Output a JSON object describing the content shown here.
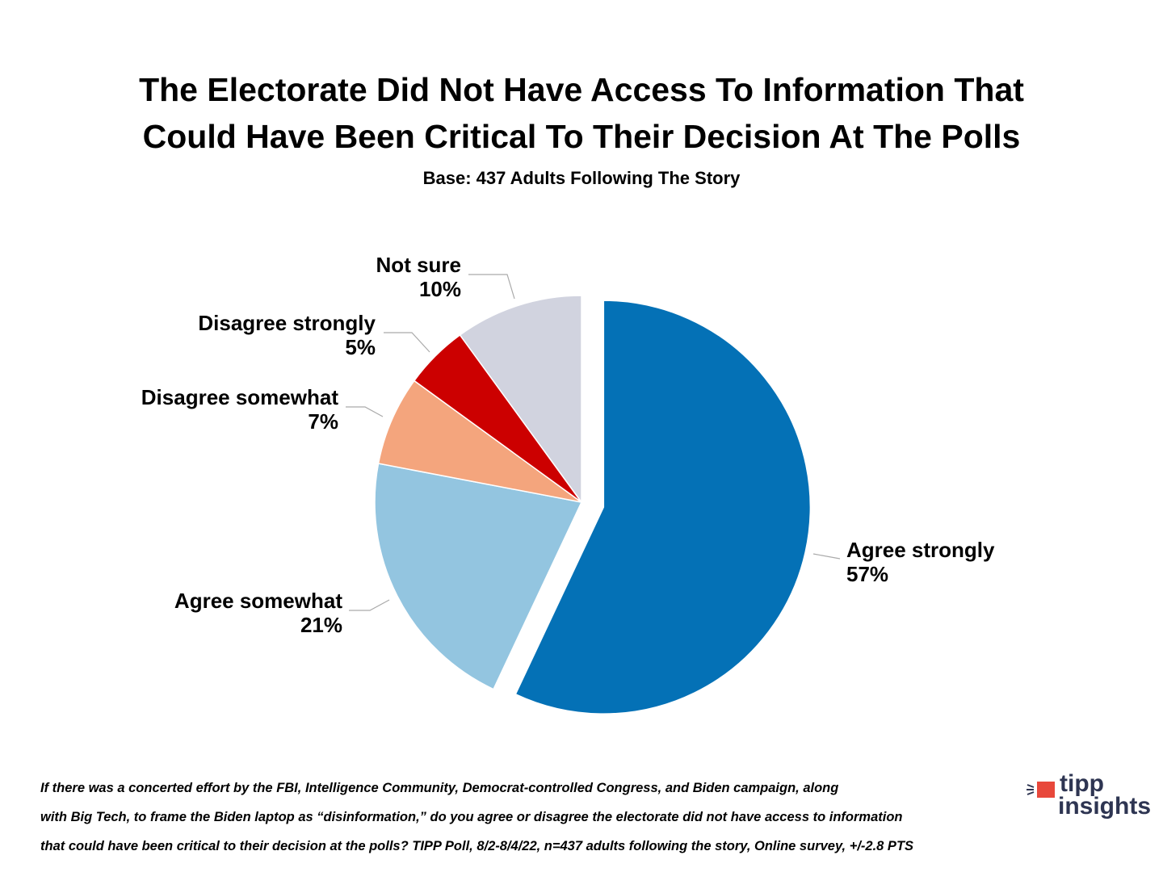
{
  "chart_data": {
    "type": "pie",
    "title": [
      "The Electorate Did Not Have Access To Information That",
      "Could Have Been Critical To Their Decision At The Polls"
    ],
    "subtitle": "Base: 437 Adults Following The Story",
    "slices": [
      {
        "name": "Agree strongly",
        "value": 57,
        "label": "57%",
        "color": "#0471b6",
        "exploded": true
      },
      {
        "name": "Agree somewhat",
        "value": 21,
        "label": "21%",
        "color": "#93c5e0"
      },
      {
        "name": "Disagree somewhat",
        "value": 7,
        "label": "7%",
        "color": "#f4a57d"
      },
      {
        "name": "Disagree strongly",
        "value": 5,
        "label": "5%",
        "color": "#cc0000"
      },
      {
        "name": "Not sure",
        "value": 10,
        "label": "10%",
        "color": "#d1d3df"
      }
    ],
    "start": "12 o'clock, clockwise"
  },
  "footnote": [
    "If there was a concerted effort by the FBI, Intelligence Community, Democrat-controlled Congress, and Biden campaign, along",
    "with Big Tech, to frame the Biden laptop as “disinformation,” do you agree or disagree the electorate did not have access to information",
    "that could have been critical to their decision at the polls?  TIPP Poll, 8/2-8/4/22, n=437 adults following the story, Online survey, +/-2.8 PTS"
  ],
  "logo": {
    "line1": "tipp",
    "line2": "insights",
    "accent": "#e8483b",
    "text_color": "#2e3552"
  }
}
